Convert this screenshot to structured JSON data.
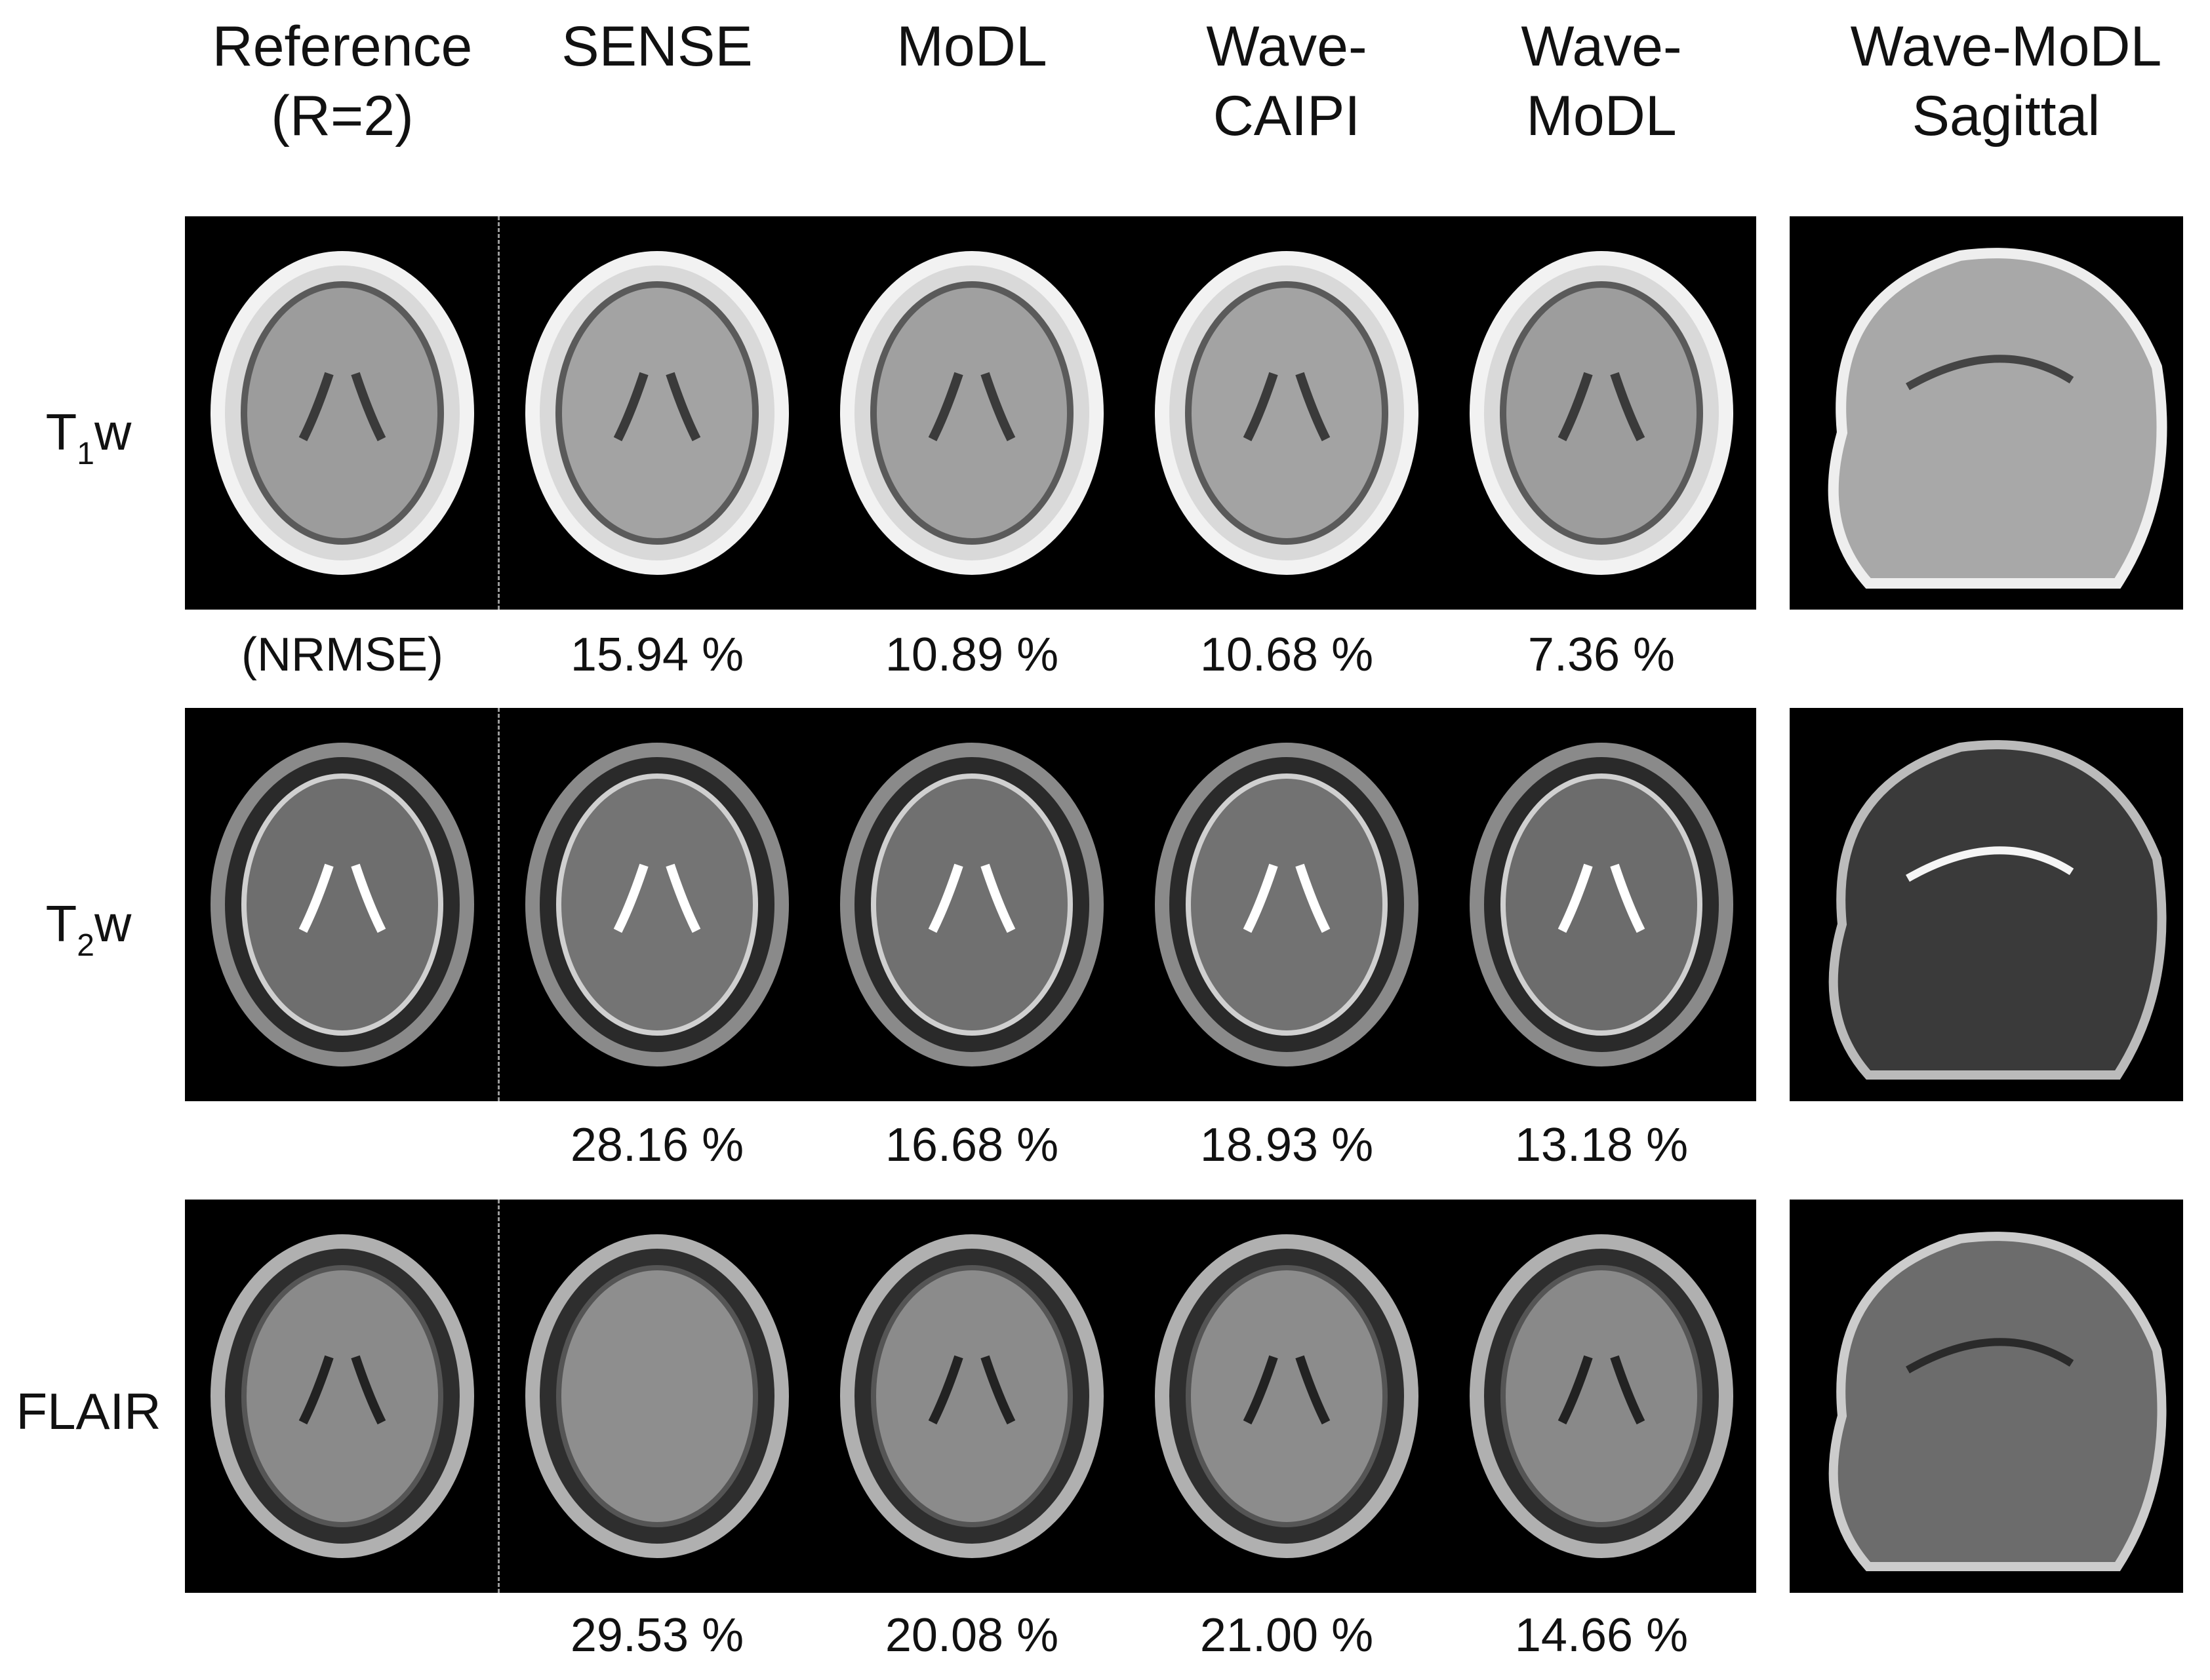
{
  "columns": [
    "Reference\n(R=2)",
    "SENSE",
    "MoDL",
    "Wave-\nCAIPI",
    "Wave-\nMoDL",
    "Wave-MoDL\nSagittal"
  ],
  "rows": [
    {
      "base": "T",
      "sub": "1",
      "suffix": "w",
      "nrmse_label": "(NRMSE)",
      "values": [
        "15.94 %",
        "10.89 %",
        "10.68 %",
        "7.36 %"
      ]
    },
    {
      "base": "T",
      "sub": "2",
      "suffix": "w",
      "nrmse_label": "",
      "values": [
        "28.16 %",
        "16.68 %",
        "18.93 %",
        "13.18 %"
      ]
    },
    {
      "base": "FLAIR",
      "sub": "",
      "suffix": "",
      "nrmse_label": "",
      "values": [
        "29.53 %",
        "20.08 %",
        "21.00 %",
        "14.66 %"
      ]
    }
  ]
}
